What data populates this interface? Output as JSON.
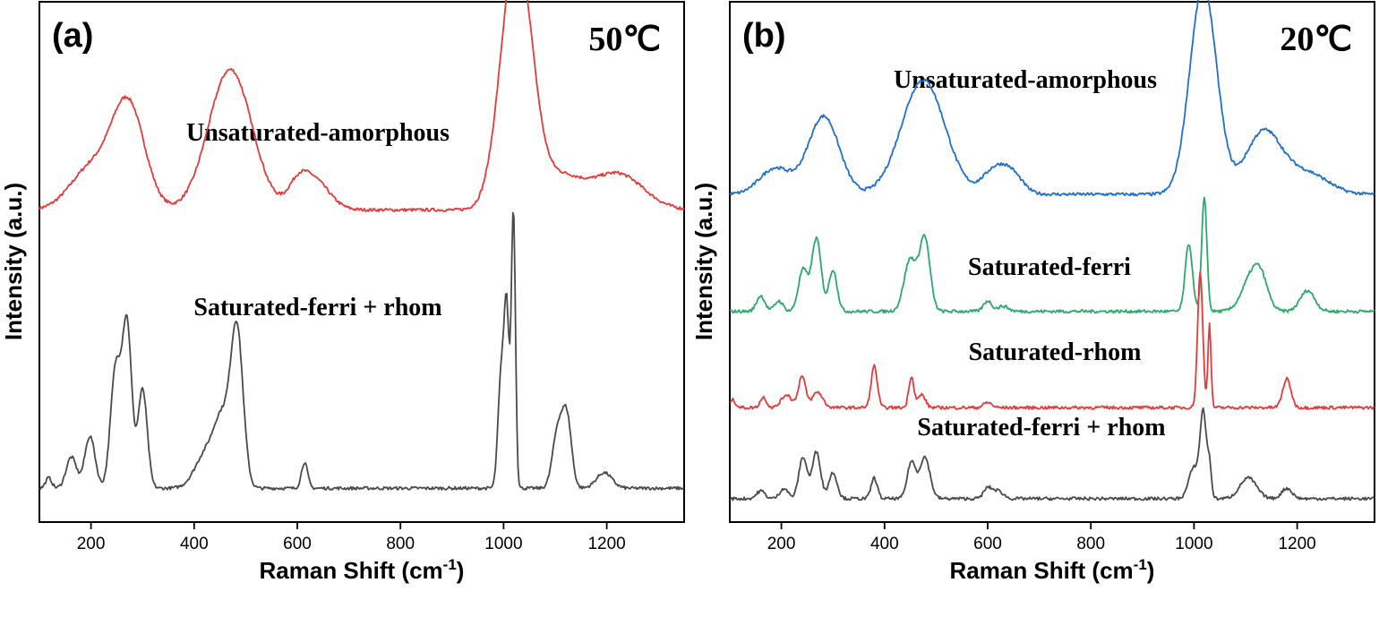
{
  "chart_data": [
    {
      "type": "line",
      "panel_label": "(a)",
      "temperature": "50℃",
      "xlabel": "Raman Shift (cm",
      "xlabel_sup": "-1",
      "xlabel_end": ")",
      "ylabel": "Intensity (a.u.)",
      "xlim": [
        100,
        1350
      ],
      "xticks": [
        "200",
        "400",
        "600",
        "800",
        "1000",
        "1200"
      ],
      "y_ticks_shown": false,
      "series": [
        {
          "name": "Unsaturated-amorphous",
          "color": "#e8393a",
          "offset": 0.58,
          "baseline": 0.02,
          "peaks": [
            [
              200,
              0.08,
              40
            ],
            [
              272,
              0.2,
              32
            ],
            [
              470,
              0.27,
              42
            ],
            [
              600,
              0.03,
              18
            ],
            [
              630,
              0.06,
              30
            ],
            [
              1025,
              0.5,
              30
            ],
            [
              1110,
              0.06,
              40
            ],
            [
              1220,
              0.07,
              50
            ]
          ]
        },
        {
          "name": "Saturated-ferri + rhom",
          "color": "#4a4a4a",
          "offset": 0.06,
          "baseline": 0.005,
          "peaks": [
            [
              118,
              0.02,
              6
            ],
            [
              162,
              0.06,
              10
            ],
            [
              198,
              0.1,
              10
            ],
            [
              248,
              0.23,
              10
            ],
            [
              270,
              0.31,
              9
            ],
            [
              300,
              0.19,
              9
            ],
            [
              425,
              0.07,
              22
            ],
            [
              455,
              0.11,
              15
            ],
            [
              483,
              0.3,
              12
            ],
            [
              614,
              0.05,
              6
            ],
            [
              995,
              0.21,
              6
            ],
            [
              1006,
              0.33,
              5
            ],
            [
              1019,
              0.53,
              4
            ],
            [
              1105,
              0.11,
              10
            ],
            [
              1123,
              0.13,
              9
            ],
            [
              1195,
              0.03,
              15
            ]
          ]
        }
      ]
    },
    {
      "type": "line",
      "panel_label": "(b)",
      "temperature": "20℃",
      "xlabel": "Raman Shift (cm",
      "xlabel_sup": "-1",
      "xlabel_end": ")",
      "ylabel": "Intensity (a.u.)",
      "xlim": [
        100,
        1350
      ],
      "xticks": [
        "200",
        "400",
        "600",
        "800",
        "1000",
        "1200"
      ],
      "y_ticks_shown": false,
      "series": [
        {
          "name": "Unsaturated-amorphous",
          "color": "#1f6fd1",
          "offset": 0.62,
          "baseline": 0.01,
          "peaks": [
            [
              188,
              0.05,
              30
            ],
            [
              282,
              0.15,
              30
            ],
            [
              475,
              0.22,
              42
            ],
            [
              610,
              0.04,
              22
            ],
            [
              645,
              0.04,
              22
            ],
            [
              1018,
              0.4,
              26
            ],
            [
              1135,
              0.12,
              35
            ],
            [
              1220,
              0.04,
              40
            ]
          ]
        },
        {
          "name": "Saturated-ferri",
          "color": "#2ca96a",
          "offset": 0.4,
          "baseline": 0.005,
          "peaks": [
            [
              160,
              0.03,
              8
            ],
            [
              195,
              0.02,
              8
            ],
            [
              242,
              0.08,
              9
            ],
            [
              268,
              0.14,
              9
            ],
            [
              300,
              0.08,
              8
            ],
            [
              450,
              0.1,
              12
            ],
            [
              478,
              0.14,
              10
            ],
            [
              600,
              0.02,
              8
            ],
            [
              630,
              0.01,
              10
            ],
            [
              990,
              0.13,
              7
            ],
            [
              1020,
              0.22,
              5
            ],
            [
              1110,
              0.06,
              18
            ],
            [
              1130,
              0.05,
              14
            ],
            [
              1220,
              0.04,
              14
            ]
          ]
        },
        {
          "name": "Saturated-rhom",
          "color": "#e8393a",
          "offset": 0.22,
          "baseline": 0.0,
          "peaks": [
            [
              105,
              0.015,
              6
            ],
            [
              165,
              0.02,
              6
            ],
            [
              210,
              0.025,
              10
            ],
            [
              240,
              0.06,
              7
            ],
            [
              270,
              0.03,
              10
            ],
            [
              380,
              0.08,
              6
            ],
            [
              452,
              0.06,
              5
            ],
            [
              472,
              0.025,
              7
            ],
            [
              600,
              0.01,
              8
            ],
            [
              1012,
              0.26,
              5
            ],
            [
              1030,
              0.16,
              3
            ],
            [
              1180,
              0.055,
              8
            ]
          ]
        },
        {
          "name": "Saturated-ferri + rhom",
          "color": "#4a4a4a",
          "offset": 0.04,
          "baseline": 0.005,
          "peaks": [
            [
              160,
              0.015,
              8
            ],
            [
              205,
              0.02,
              8
            ],
            [
              242,
              0.08,
              8
            ],
            [
              268,
              0.09,
              8
            ],
            [
              300,
              0.05,
              8
            ],
            [
              380,
              0.04,
              6
            ],
            [
              452,
              0.07,
              8
            ],
            [
              478,
              0.08,
              10
            ],
            [
              600,
              0.02,
              8
            ],
            [
              620,
              0.015,
              10
            ],
            [
              1000,
              0.06,
              10
            ],
            [
              1018,
              0.16,
              6
            ],
            [
              1030,
              0.06,
              4
            ],
            [
              1105,
              0.04,
              16
            ],
            [
              1180,
              0.02,
              10
            ]
          ]
        }
      ]
    }
  ]
}
